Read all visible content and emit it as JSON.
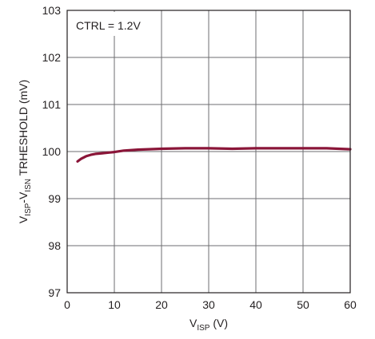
{
  "chart_data": {
    "type": "line",
    "xlabel": {
      "main": "V",
      "sub": "ISP",
      "unit": " (V)"
    },
    "ylabel": {
      "parts": [
        {
          "text": "V",
          "sub": false
        },
        {
          "text": "ISP",
          "sub": true
        },
        {
          "text": "-V",
          "sub": false
        },
        {
          "text": "ISN",
          "sub": true
        },
        {
          "text": " TRHESHOLD (mV)",
          "sub": false
        }
      ]
    },
    "annotation": "CTRL = 1.2V",
    "xlim": [
      0,
      60
    ],
    "ylim": [
      97,
      103
    ],
    "x_ticks": [
      0,
      10,
      20,
      30,
      40,
      50,
      60
    ],
    "y_ticks": [
      97,
      98,
      99,
      100,
      101,
      102,
      103
    ],
    "grid": true,
    "series": [
      {
        "color": "#8a1538",
        "x": [
          2.2,
          3,
          4,
          5,
          6,
          7,
          8,
          9,
          10,
          12,
          15,
          20,
          25,
          30,
          35,
          40,
          45,
          50,
          55,
          60
        ],
        "y": [
          99.79,
          99.85,
          99.9,
          99.93,
          99.95,
          99.96,
          99.97,
          99.98,
          99.99,
          100.02,
          100.04,
          100.06,
          100.07,
          100.07,
          100.06,
          100.07,
          100.07,
          100.07,
          100.07,
          100.05
        ]
      }
    ]
  }
}
